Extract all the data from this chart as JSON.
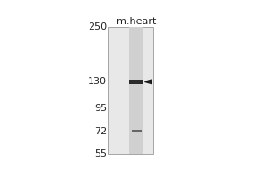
{
  "title": "m.heart",
  "mw_markers": [
    250,
    130,
    95,
    72,
    55
  ],
  "band_mw": 130,
  "band_mw2": 72,
  "fig_bg": "#ffffff",
  "blot_bg": "#ffffff",
  "lane_color": "#c8c8c8",
  "band1_color": "#2a2a2a",
  "band2_color": "#666666",
  "arrow_color": "#1a1a1a",
  "border_color": "#999999",
  "title_fontsize": 8,
  "marker_fontsize": 8
}
